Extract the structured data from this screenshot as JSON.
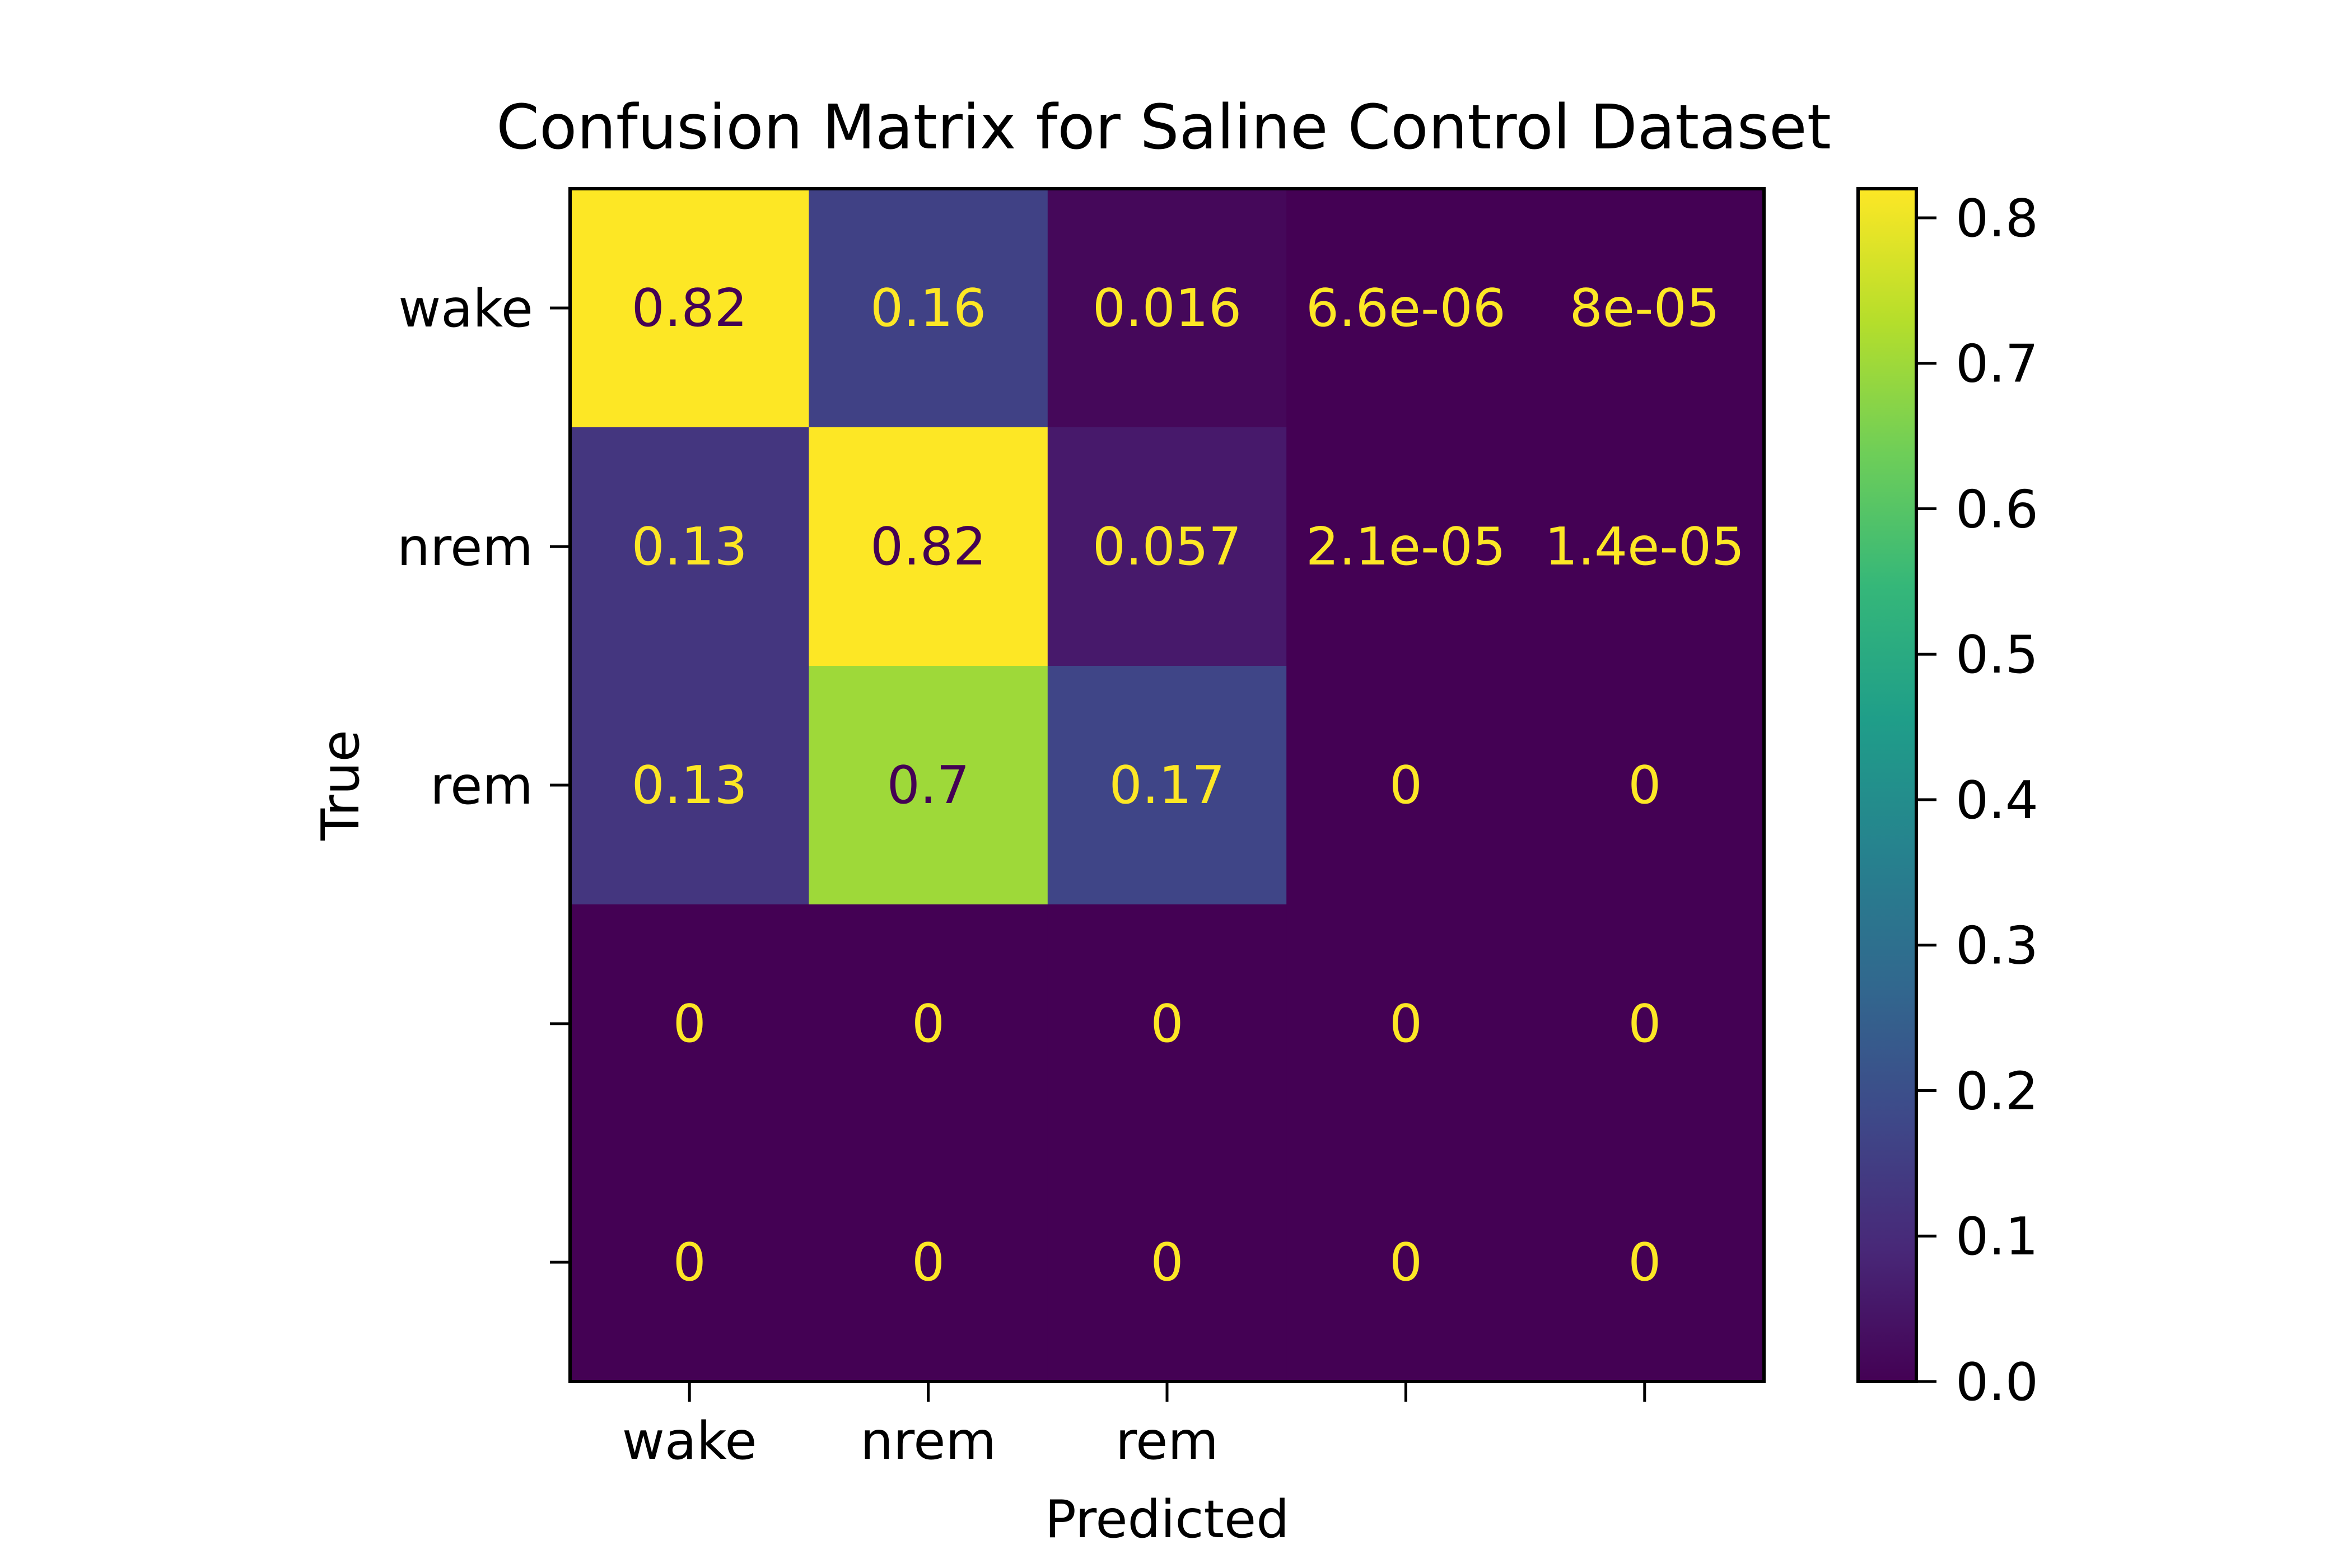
{
  "chart_data": {
    "type": "heatmap",
    "title": "Confusion Matrix for Saline Control Dataset",
    "xlabel": "Predicted",
    "ylabel": "True",
    "x_tick_labels": [
      "wake",
      "nrem",
      "rem",
      "",
      ""
    ],
    "y_tick_labels": [
      "wake",
      "nrem",
      "rem",
      "",
      ""
    ],
    "values": [
      [
        0.82,
        0.16,
        0.016,
        6.6e-06,
        8e-05
      ],
      [
        0.13,
        0.82,
        0.057,
        2.1e-05,
        1.4e-05
      ],
      [
        0.13,
        0.7,
        0.17,
        0,
        0
      ],
      [
        0,
        0,
        0,
        0,
        0
      ],
      [
        0,
        0,
        0,
        0,
        0
      ]
    ],
    "cell_labels": [
      [
        "0.82",
        "0.16",
        "0.016",
        "6.6e-06",
        "8e-05"
      ],
      [
        "0.13",
        "0.82",
        "0.057",
        "2.1e-05",
        "1.4e-05"
      ],
      [
        "0.13",
        "0.7",
        "0.17",
        "0",
        "0"
      ],
      [
        "0",
        "0",
        "0",
        "0",
        "0"
      ],
      [
        "0",
        "0",
        "0",
        "0",
        "0"
      ]
    ],
    "colormap": "viridis",
    "vmin": 0,
    "vmax": 0.82,
    "colorbar_ticks": [
      "0.0",
      "0.1",
      "0.2",
      "0.3",
      "0.4",
      "0.5",
      "0.6",
      "0.7",
      "0.8"
    ],
    "colorbar_tick_values": [
      0,
      0.1,
      0.2,
      0.3,
      0.4,
      0.5,
      0.6,
      0.7,
      0.8
    ],
    "text_color_dark": "#440154",
    "text_color_light": "#fde725"
  }
}
